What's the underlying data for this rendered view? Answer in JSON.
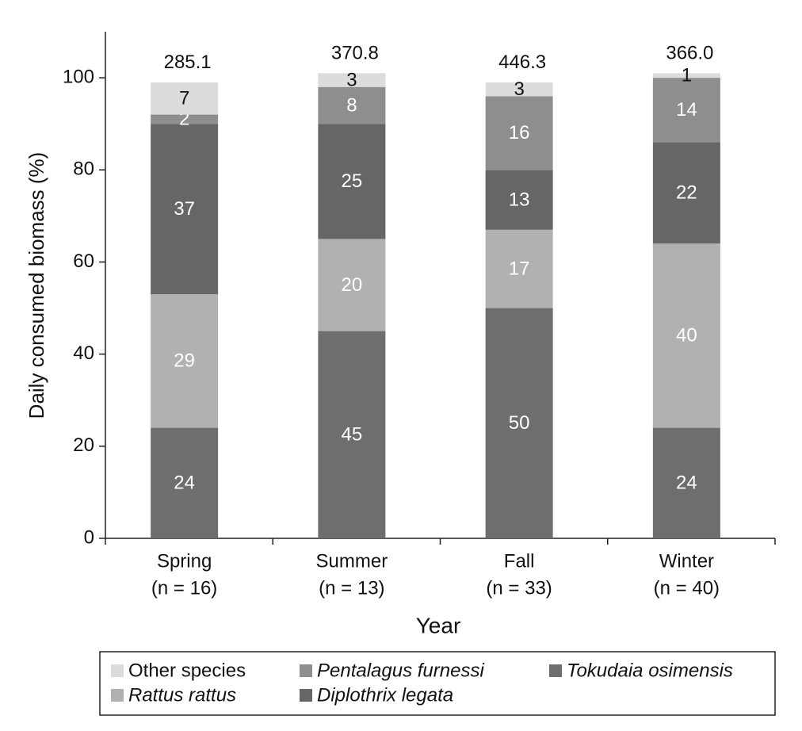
{
  "chart_data": {
    "type": "stacked_bar",
    "y_label": "Daily consumed biomass (%)",
    "x_label": "Year",
    "categories": [
      "Spring",
      "Summer",
      "Fall",
      "Winter"
    ],
    "category_notes": [
      "(n = 16)",
      "(n = 13)",
      "(n = 33)",
      "(n = 40)"
    ],
    "series": [
      {
        "name": "Tokudaia osimensis",
        "color": "#6e6e6e",
        "italic": true,
        "label_color": "#ffffff",
        "values": [
          24,
          45,
          50,
          24
        ]
      },
      {
        "name": "Rattus rattus",
        "color": "#b1b1b3",
        "italic": true,
        "label_color": "#ffffff",
        "values": [
          29,
          20,
          17,
          40
        ]
      },
      {
        "name": "Diplothrix legata",
        "color": "#666667",
        "italic": true,
        "label_color": "#ffffff",
        "values": [
          37,
          25,
          13,
          22
        ]
      },
      {
        "name": "Pentalagus furnessi",
        "color": "#8e8e90",
        "italic": true,
        "label_color": "#ffffff",
        "values": [
          2,
          8,
          16,
          14
        ]
      },
      {
        "name": "Other species",
        "color": "#dcdcdd",
        "italic": false,
        "label_color": "#111111",
        "values": [
          7,
          3,
          3,
          1
        ]
      }
    ],
    "totals": {
      "values": [
        285.1,
        370.8,
        446.3,
        366.0
      ],
      "value_labels": [
        "285.1",
        "370.8",
        "446.3",
        "366.0"
      ]
    },
    "ylim": [
      0,
      110
    ],
    "yticks": [
      0,
      20,
      40,
      60,
      80,
      100
    ],
    "grid": false
  }
}
